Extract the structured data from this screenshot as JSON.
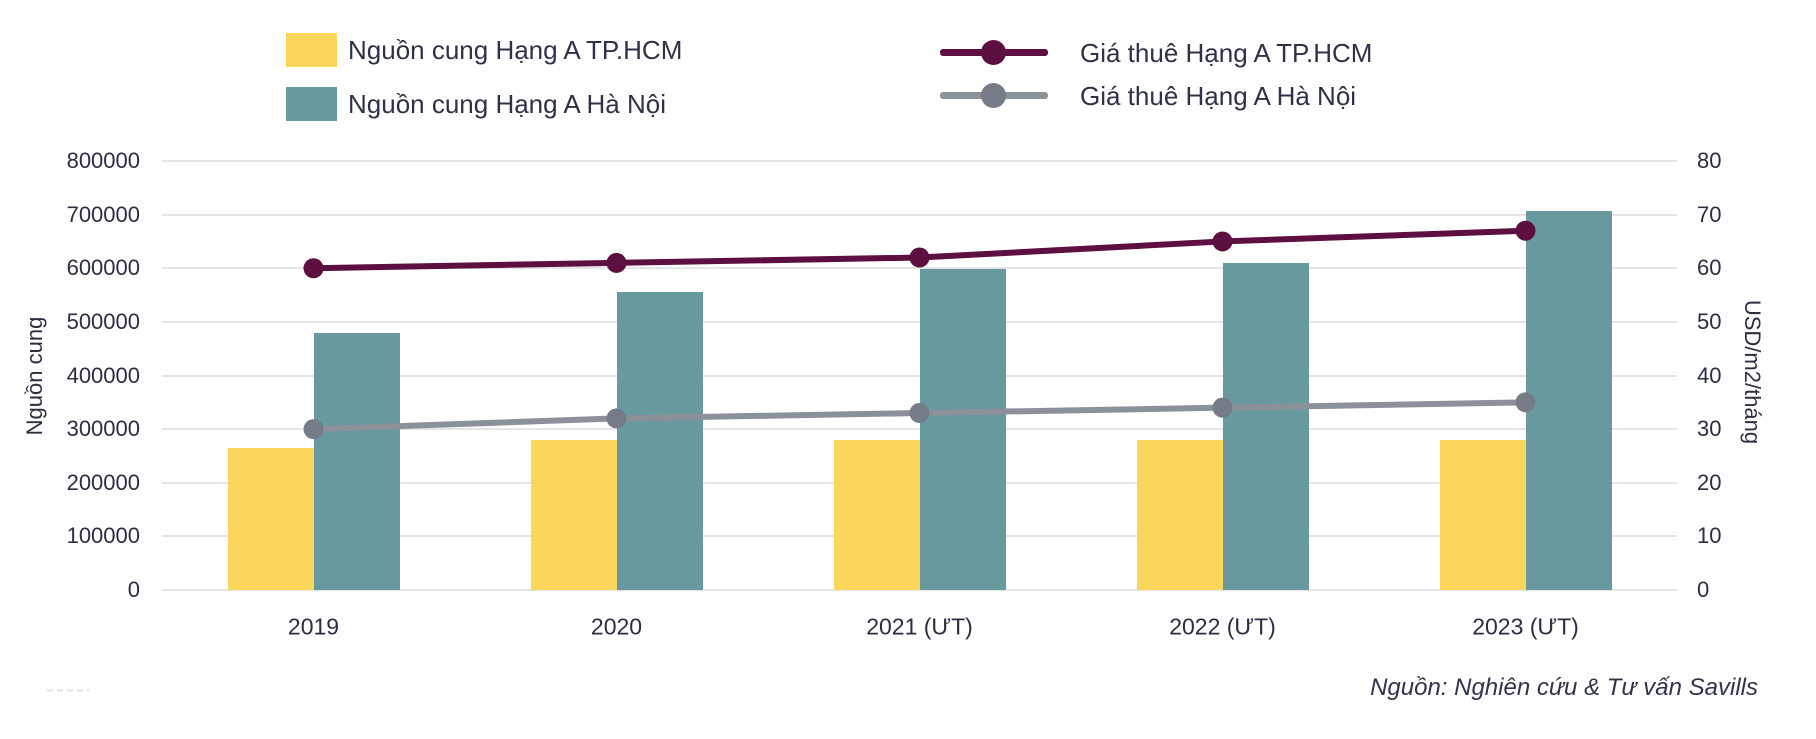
{
  "legend": {
    "items": [
      {
        "label": "Nguồn cung Hạng A TP.HCM",
        "swatch": "square",
        "color": "#FBD65B"
      },
      {
        "label": "Nguồn cung Hạng A Hà Nội",
        "swatch": "square",
        "color": "#67999F"
      },
      {
        "label": "Giá thuê Hạng A TP.HCM",
        "swatch": "line-dot",
        "color": "#5C0F40",
        "marker_color": "#5C0F40"
      },
      {
        "label": "Giá thuê Hạng A Hà Nội",
        "swatch": "line-dot",
        "color": "#8C9099",
        "marker_color": "#757B87"
      }
    ]
  },
  "chart_data": {
    "type": "combo-bar-line",
    "categories": [
      "2019",
      "2020",
      "2021 (ƯT)",
      "2022 (ƯT)",
      "2023 (ƯT)"
    ],
    "bar_series": [
      {
        "name": "Nguồn cung Hạng A TP.HCM",
        "axis": "left",
        "color": "#FBD65B",
        "values": [
          265000,
          280000,
          280000,
          280000,
          280000
        ]
      },
      {
        "name": "Nguồn cung Hạng A Hà Nội",
        "axis": "left",
        "color": "#67999F",
        "values": [
          480000,
          555000,
          598000,
          610000,
          707000
        ]
      }
    ],
    "line_series": [
      {
        "name": "Giá thuê Hạng A TP.HCM",
        "axis": "right",
        "color": "#5C0F40",
        "marker_color": "#5C0F40",
        "values": [
          60,
          61,
          62,
          65,
          67
        ]
      },
      {
        "name": "Giá thuê Hạng A Hà Nội",
        "axis": "right",
        "color": "#8C9099",
        "marker_color": "#757B87",
        "values": [
          30,
          32,
          33,
          34,
          35
        ]
      }
    ],
    "left_axis": {
      "label": "Nguồn cung",
      "min": 0,
      "max": 800000,
      "step": 100000,
      "tick_labels": [
        "800000",
        "700000",
        "600000",
        "500000",
        "400000",
        "300000",
        "200000",
        "100000",
        "0"
      ]
    },
    "right_axis": {
      "label": "USD/m2/tháng",
      "min": 0,
      "max": 80,
      "step": 10,
      "tick_labels": [
        "80",
        "70",
        "60",
        "50",
        "40",
        "30",
        "20",
        "10",
        "0"
      ]
    },
    "grid": true,
    "legend_position": "top"
  },
  "source_note": "Nguồn: Nghiên cứu & Tư vấn Savills"
}
